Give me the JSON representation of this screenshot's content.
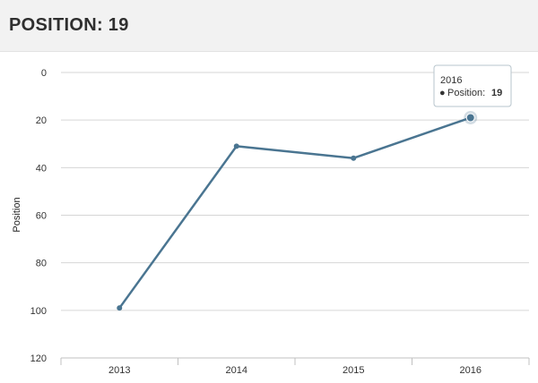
{
  "header": {
    "title": "POSITION: 19"
  },
  "chart_data": {
    "type": "line",
    "categories": [
      "2013",
      "2014",
      "2015",
      "2016"
    ],
    "series": [
      {
        "name": "Position",
        "values": [
          99,
          31,
          36,
          19
        ],
        "color": "#4a7591"
      }
    ],
    "ylabel": "Position",
    "xlabel": "",
    "ylim": [
      0,
      120
    ],
    "y_reversed": true,
    "y_ticks": [
      "0",
      "20",
      "40",
      "60",
      "80",
      "100",
      "120"
    ],
    "grid": true,
    "tooltip": {
      "title": "2016",
      "label": "Position:",
      "value": "19",
      "bullet": "●"
    }
  }
}
